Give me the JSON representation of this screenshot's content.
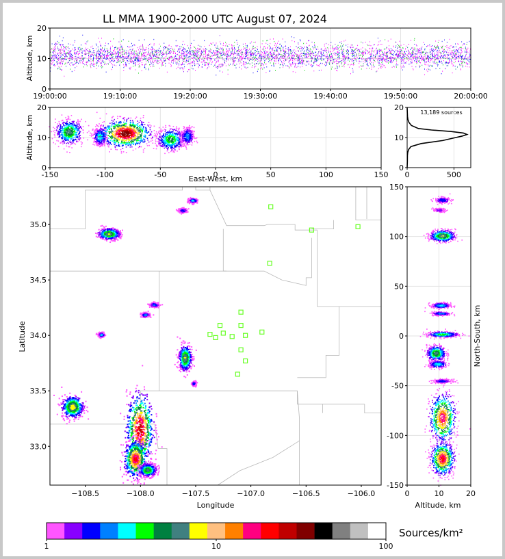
{
  "title": "LL MMA 1900-2000 UTC August 07, 2024",
  "colors": {
    "background": "#ffffff",
    "station": "#66ff22",
    "border": "#b8b8b8",
    "palette": [
      "#ff55ff",
      "#8800ff",
      "#0000ff",
      "#0080ff",
      "#00ffff",
      "#00ff00",
      "#008040",
      "#408080",
      "#ffff00",
      "#ffc080",
      "#ff8000",
      "#ff0080",
      "#ff0000",
      "#c00000",
      "#800000",
      "#000000",
      "#808080",
      "#c0c0c0",
      "#ffffff"
    ]
  },
  "chart_data": [
    {
      "id": "time_altitude",
      "type": "scatter",
      "ylabel": "Altitude, km",
      "xticks": [
        "19:00:00",
        "19:10:00",
        "19:20:00",
        "19:30:00",
        "19:40:00",
        "19:50:00",
        "20:00:00"
      ],
      "xlim_minutes": [
        0,
        60
      ],
      "ylim": [
        0,
        20
      ],
      "yticks": [
        0,
        10,
        20
      ],
      "grid": true
    },
    {
      "id": "east_west_altitude",
      "type": "heatmap",
      "xlabel": "East-West, km",
      "ylabel": "Altitude, km",
      "xlim": [
        -150,
        150
      ],
      "xticks": [
        -150,
        -100,
        -50,
        0,
        50,
        100,
        150
      ],
      "ylim": [
        0,
        20
      ],
      "yticks": [
        0,
        10,
        20
      ],
      "grid": true,
      "clusters": [
        {
          "x": -133,
          "alt": 12,
          "sx": 6,
          "sz": 2.0,
          "peak": 0.5
        },
        {
          "x": -105,
          "alt": 10.5,
          "sx": 3,
          "sz": 1.5,
          "peak": 0.35
        },
        {
          "x": -82,
          "alt": 11.5,
          "sx": 11,
          "sz": 2.2,
          "peak": 1.0
        },
        {
          "x": -41,
          "alt": 9.5,
          "sx": 6,
          "sz": 1.8,
          "peak": 0.45
        },
        {
          "x": -26,
          "alt": 10.5,
          "sx": 3,
          "sz": 1.5,
          "peak": 0.25
        }
      ]
    },
    {
      "id": "altitude_histogram",
      "type": "line",
      "annotation": "13,189 sources",
      "xlim": [
        0,
        680
      ],
      "xticks": [
        0,
        500
      ],
      "ylim": [
        0,
        20
      ],
      "yticks": [
        0,
        10,
        20
      ],
      "profile": [
        [
          0.0,
          0
        ],
        [
          2.0,
          2
        ],
        [
          4.0,
          3
        ],
        [
          5.0,
          6
        ],
        [
          6.0,
          15
        ],
        [
          7.0,
          40
        ],
        [
          8.0,
          150
        ],
        [
          9.0,
          380
        ],
        [
          10.0,
          520
        ],
        [
          10.5,
          590
        ],
        [
          11.0,
          640
        ],
        [
          11.5,
          600
        ],
        [
          12.0,
          470
        ],
        [
          12.5,
          260
        ],
        [
          13.0,
          120
        ],
        [
          14.0,
          45
        ],
        [
          15.0,
          20
        ],
        [
          16.0,
          8
        ],
        [
          17.0,
          4
        ],
        [
          18.0,
          2
        ],
        [
          20.0,
          0
        ]
      ]
    },
    {
      "id": "plan_view",
      "type": "heatmap",
      "xlabel": "Longitude",
      "ylabel": "Latitude",
      "xlim": [
        -108.82,
        -105.82
      ],
      "ylim": [
        32.65,
        35.34
      ],
      "xticks": [
        -108.5,
        -108.0,
        -107.5,
        -107.0,
        -106.5,
        -106.0
      ],
      "yticks": [
        33.0,
        33.5,
        34.0,
        34.5,
        35.0
      ],
      "stations": [
        {
          "lon": -106.82,
          "lat": 35.16
        },
        {
          "lon": -106.45,
          "lat": 34.95
        },
        {
          "lon": -106.03,
          "lat": 34.98
        },
        {
          "lon": -106.83,
          "lat": 34.65
        },
        {
          "lon": -107.09,
          "lat": 34.21
        },
        {
          "lon": -107.28,
          "lat": 34.09
        },
        {
          "lon": -107.09,
          "lat": 34.09
        },
        {
          "lon": -107.37,
          "lat": 34.01
        },
        {
          "lon": -107.25,
          "lat": 34.02
        },
        {
          "lon": -107.32,
          "lat": 33.98
        },
        {
          "lon": -107.17,
          "lat": 33.99
        },
        {
          "lon": -107.05,
          "lat": 34.0
        },
        {
          "lon": -106.9,
          "lat": 34.03
        },
        {
          "lon": -107.09,
          "lat": 33.87
        },
        {
          "lon": -107.05,
          "lat": 33.77
        },
        {
          "lon": -107.12,
          "lat": 33.65
        }
      ],
      "clusters": [
        {
          "lon": -108.62,
          "lat": 33.36,
          "slon": 0.05,
          "slat": 0.05,
          "peak": 0.6
        },
        {
          "lon": -108.01,
          "lat": 33.16,
          "slon": 0.06,
          "slat": 0.16,
          "peak": 0.9
        },
        {
          "lon": -108.05,
          "lat": 32.89,
          "slon": 0.05,
          "slat": 0.08,
          "peak": 0.85
        },
        {
          "lon": -107.94,
          "lat": 32.79,
          "slon": 0.04,
          "slat": 0.03,
          "peak": 0.5
        },
        {
          "lon": -108.29,
          "lat": 34.92,
          "slon": 0.05,
          "slat": 0.025,
          "peak": 0.55
        },
        {
          "lon": -107.53,
          "lat": 35.22,
          "slon": 0.02,
          "slat": 0.01,
          "peak": 0.3
        },
        {
          "lon": -107.62,
          "lat": 35.13,
          "slon": 0.02,
          "slat": 0.01,
          "peak": 0.2
        },
        {
          "lon": -107.88,
          "lat": 34.28,
          "slon": 0.02,
          "slat": 0.01,
          "peak": 0.25
        },
        {
          "lon": -107.96,
          "lat": 34.19,
          "slon": 0.02,
          "slat": 0.01,
          "peak": 0.25
        },
        {
          "lon": -108.36,
          "lat": 34.01,
          "slon": 0.015,
          "slat": 0.01,
          "peak": 0.3
        },
        {
          "lon": -107.6,
          "lat": 33.8,
          "slon": 0.03,
          "slat": 0.06,
          "peak": 0.55
        },
        {
          "lon": -107.52,
          "lat": 33.57,
          "slon": 0.01,
          "slat": 0.01,
          "peak": 0.2
        }
      ]
    },
    {
      "id": "altitude_north_south",
      "type": "heatmap",
      "xlabel": "Altitude, km",
      "ylabel": "North-South, km",
      "xlim": [
        0,
        20
      ],
      "xticks": [
        0,
        10,
        20
      ],
      "ylim": [
        -150,
        150
      ],
      "yticks": [
        -150,
        -100,
        -50,
        0,
        50,
        100,
        150
      ],
      "grid": true,
      "clusters": [
        {
          "ns": 137,
          "alt": 11,
          "sns": 1.5,
          "sa": 1.2,
          "peak": 0.2
        },
        {
          "ns": 127,
          "alt": 10,
          "sns": 1,
          "sa": 1,
          "peak": 0.12
        },
        {
          "ns": 101,
          "alt": 11,
          "sns": 3,
          "sa": 2.0,
          "peak": 0.55
        },
        {
          "ns": 31,
          "alt": 10.5,
          "sns": 1.5,
          "sa": 1.5,
          "peak": 0.3
        },
        {
          "ns": 23,
          "alt": 10.5,
          "sns": 1,
          "sa": 1.5,
          "peak": 0.25
        },
        {
          "ns": 2,
          "alt": 11,
          "sns": 1.5,
          "sa": 2.5,
          "peak": 0.4
        },
        {
          "ns": -17,
          "alt": 9,
          "sns": 4,
          "sa": 1.5,
          "peak": 0.5
        },
        {
          "ns": -28,
          "alt": 9.5,
          "sns": 2,
          "sa": 1.5,
          "peak": 0.3
        },
        {
          "ns": -45,
          "alt": 11,
          "sns": 1,
          "sa": 1.5,
          "peak": 0.2
        },
        {
          "ns": -82,
          "alt": 11,
          "sns": 12,
          "sa": 2.0,
          "peak": 0.8
        },
        {
          "ns": -123,
          "alt": 11,
          "sns": 8,
          "sa": 1.8,
          "peak": 0.85
        }
      ]
    }
  ],
  "legend": {
    "label": "Sources/km²",
    "ticks": [
      "1",
      "10",
      "100"
    ]
  }
}
